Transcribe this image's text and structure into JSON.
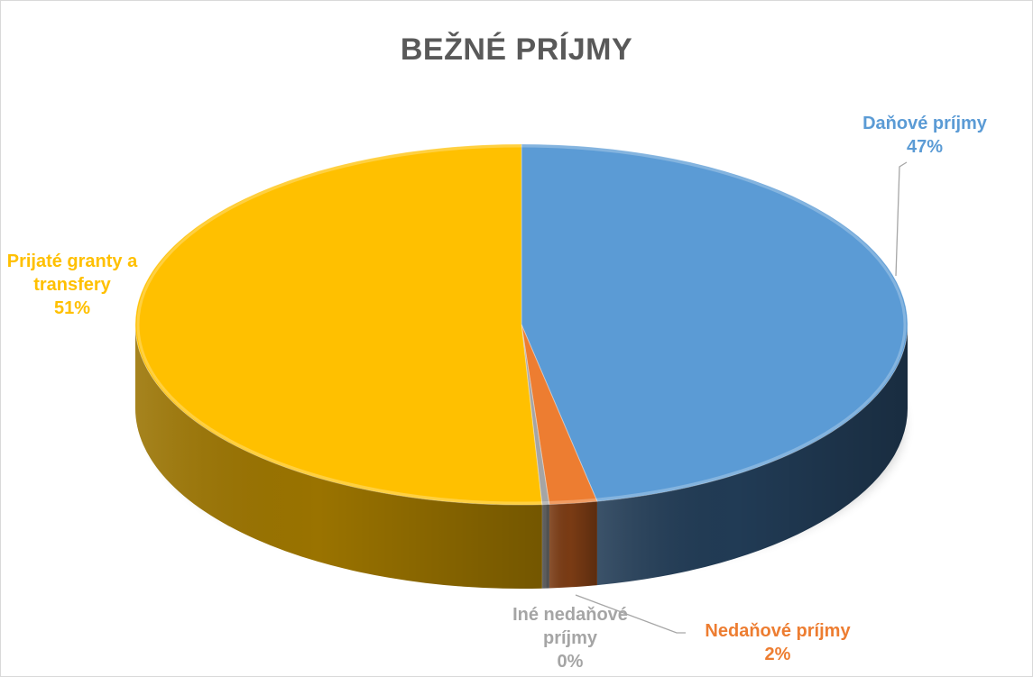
{
  "chart_data": {
    "type": "pie",
    "style": "3d",
    "title": "BEŽNÉ PRÍJMY",
    "slices": [
      {
        "label_lines": [
          "Daňové príjmy"
        ],
        "percent_label": "47%",
        "value": 47,
        "color": "#5b9bd5",
        "side_color": "#213b55"
      },
      {
        "label_lines": [
          "Nedaňové príjmy"
        ],
        "percent_label": "2%",
        "value": 2,
        "color": "#ed7d31",
        "side_color": "#7a3b14"
      },
      {
        "label_lines": [
          "Iné nedaňové",
          "príjmy"
        ],
        "percent_label": "0%",
        "value": 0.3,
        "color": "#a5a5a5",
        "side_color": "#5e5e5e"
      },
      {
        "label_lines": [
          "Prijaté granty a",
          "transfery"
        ],
        "percent_label": "51%",
        "value": 51,
        "color": "#ffc000",
        "side_color": "#9a7300"
      }
    ],
    "legend": "none",
    "data_labels": "outside"
  }
}
